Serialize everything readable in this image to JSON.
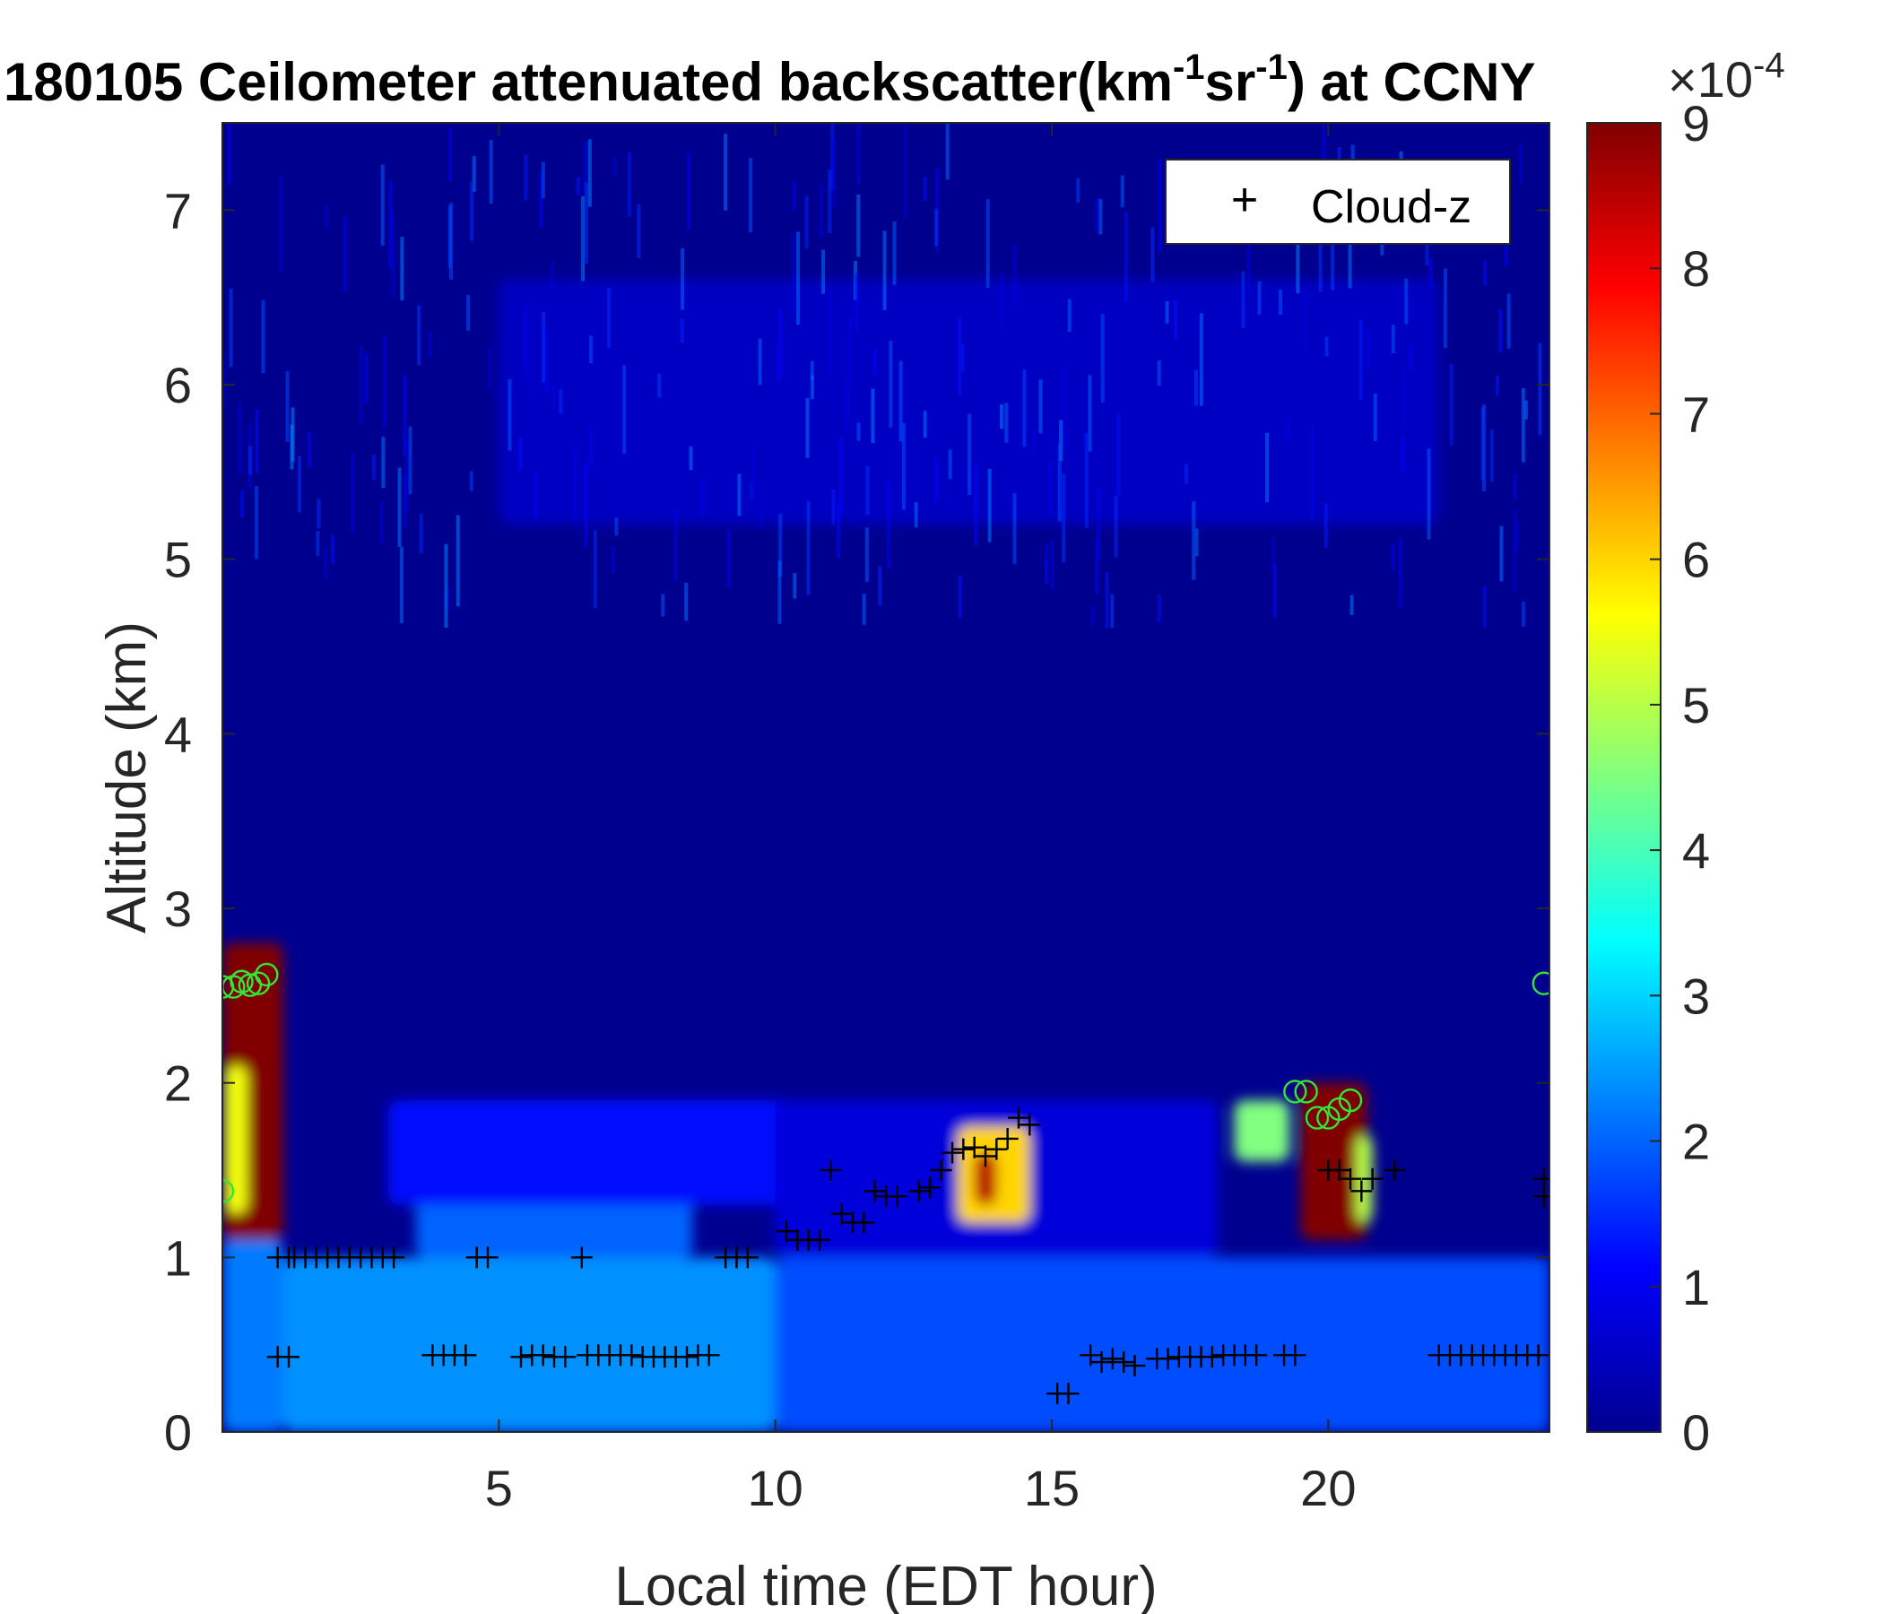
{
  "chart_data": {
    "type": "heatmap",
    "title": {
      "prefix": "180105 Ceilometer attenuated backscatter(km",
      "sup1": "-1",
      "mid": "sr",
      "sup2": "-1",
      "suffix": ") at CCNY"
    },
    "xlabel": "Local time (EDT hour)",
    "ylabel": "Altitude (km)",
    "xlim": [
      0,
      24
    ],
    "ylim": [
      0,
      7.5
    ],
    "xticks": [
      5,
      10,
      15,
      20
    ],
    "yticks": [
      0,
      1,
      2,
      3,
      4,
      5,
      6,
      7
    ],
    "colorbar": {
      "range": [
        0,
        9
      ],
      "ticks": [
        0,
        1,
        2,
        3,
        4,
        5,
        6,
        7,
        8,
        9
      ],
      "exponent_base": "×10",
      "exponent": "-4",
      "colormap": "jet"
    },
    "legend": {
      "position": "top-right",
      "entries": [
        "Cloud-z"
      ]
    },
    "background_color": "#00008f",
    "features": [
      {
        "x": [
          0.0,
          1.1
        ],
        "y": [
          0.0,
          1.1
        ],
        "value": 2.2
      },
      {
        "x": [
          1.1,
          10.0
        ],
        "y": [
          0.0,
          1.0
        ],
        "value": 2.4
      },
      {
        "x": [
          3.5,
          8.5
        ],
        "y": [
          1.0,
          1.35
        ],
        "value": 2.0
      },
      {
        "x": [
          3.0,
          10.5
        ],
        "y": [
          1.3,
          1.9
        ],
        "value": 1.2
      },
      {
        "x": [
          10.0,
          24.0
        ],
        "y": [
          0.0,
          1.0
        ],
        "value": 1.8
      },
      {
        "x": [
          10.0,
          18.0
        ],
        "y": [
          1.0,
          1.9
        ],
        "value": 0.8
      },
      {
        "x": [
          5.0,
          22.0
        ],
        "y": [
          5.2,
          6.6
        ],
        "value": 0.6
      },
      {
        "x": [
          0.0,
          1.1
        ],
        "y": [
          1.1,
          2.8
        ],
        "value": 9.0
      },
      {
        "x": [
          0.05,
          0.45
        ],
        "y": [
          1.25,
          2.1
        ],
        "value": 5.5
      },
      {
        "x": [
          13.3,
          14.6
        ],
        "y": [
          1.2,
          1.75
        ],
        "value": 6.0
      },
      {
        "x": [
          13.6,
          14.0
        ],
        "y": [
          1.3,
          1.6
        ],
        "value": 8.5
      },
      {
        "x": [
          18.3,
          19.3
        ],
        "y": [
          1.55,
          1.9
        ],
        "value": 4.5
      },
      {
        "x": [
          19.5,
          20.7
        ],
        "y": [
          1.1,
          2.0
        ],
        "value": 9.0
      },
      {
        "x": [
          20.5,
          20.8
        ],
        "y": [
          1.2,
          1.7
        ],
        "value": 5.0
      }
    ],
    "series": [
      {
        "name": "Cloud-z",
        "marker": "+",
        "color": "#000000",
        "x": [
          1.0,
          1.2,
          1.3,
          1.5,
          1.7,
          1.9,
          2.1,
          2.3,
          2.5,
          2.7,
          2.9,
          3.1,
          4.6,
          4.8,
          6.5,
          9.1,
          9.3,
          9.5,
          10.2,
          10.4,
          10.6,
          10.8,
          11.0,
          11.2,
          11.4,
          11.6,
          11.8,
          12.0,
          12.2,
          12.6,
          12.8,
          13.0,
          13.2,
          13.4,
          13.6,
          13.8,
          14.0,
          14.2,
          14.4,
          14.6,
          1.0,
          1.2,
          3.8,
          4.0,
          4.2,
          4.4,
          5.4,
          5.6,
          5.8,
          6.0,
          6.2,
          6.6,
          6.8,
          7.0,
          7.2,
          7.4,
          7.6,
          7.8,
          8.0,
          8.2,
          8.4,
          8.6,
          8.8,
          15.1,
          15.3,
          15.7,
          15.9,
          16.1,
          16.3,
          16.5,
          16.9,
          17.1,
          17.3,
          17.5,
          17.7,
          17.9,
          18.1,
          18.3,
          18.5,
          18.7,
          19.2,
          19.4,
          22.0,
          22.2,
          22.4,
          22.6,
          22.8,
          23.0,
          23.2,
          23.4,
          23.6,
          23.8,
          20.0,
          20.2,
          20.4,
          20.6,
          20.8,
          21.2,
          23.9,
          23.9
        ],
        "y": [
          1.0,
          1.0,
          1.0,
          1.0,
          1.0,
          1.0,
          1.0,
          1.0,
          1.0,
          1.0,
          1.0,
          1.0,
          1.0,
          1.0,
          1.0,
          1.0,
          1.0,
          1.0,
          1.15,
          1.1,
          1.1,
          1.1,
          1.5,
          1.25,
          1.2,
          1.2,
          1.38,
          1.35,
          1.35,
          1.38,
          1.4,
          1.5,
          1.6,
          1.62,
          1.63,
          1.58,
          1.62,
          1.68,
          1.8,
          1.76,
          0.43,
          0.43,
          0.44,
          0.44,
          0.44,
          0.44,
          0.43,
          0.44,
          0.44,
          0.43,
          0.43,
          0.44,
          0.44,
          0.44,
          0.44,
          0.44,
          0.43,
          0.43,
          0.43,
          0.43,
          0.43,
          0.44,
          0.44,
          0.22,
          0.22,
          0.44,
          0.4,
          0.42,
          0.4,
          0.38,
          0.42,
          0.42,
          0.43,
          0.43,
          0.43,
          0.43,
          0.44,
          0.44,
          0.44,
          0.44,
          0.44,
          0.44,
          0.44,
          0.44,
          0.44,
          0.44,
          0.44,
          0.44,
          0.44,
          0.44,
          0.44,
          0.44,
          1.5,
          1.5,
          1.45,
          1.38,
          1.45,
          1.5,
          1.45,
          1.35
        ]
      },
      {
        "marker": "o",
        "color": "#33e633",
        "x": [
          0.0,
          0.2,
          0.35,
          0.5,
          0.65,
          0.8,
          0.0,
          19.4,
          19.6,
          19.8,
          20.0,
          20.2,
          20.4,
          23.9
        ],
        "y": [
          2.55,
          2.55,
          2.58,
          2.56,
          2.57,
          2.62,
          1.38,
          1.95,
          1.95,
          1.8,
          1.8,
          1.85,
          1.9,
          2.57
        ]
      }
    ]
  }
}
